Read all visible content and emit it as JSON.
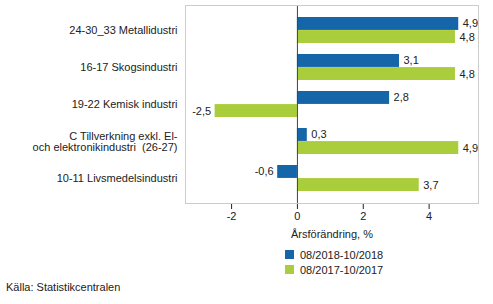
{
  "chart_data": {
    "type": "bar",
    "orientation": "horizontal",
    "categories": [
      "24-30_33 Metallidustri",
      "16-17 Skogsindustri",
      "19-22 Kemisk industri",
      "C Tillverkning exkl. El-\noch elektronikindustri  (26-27)",
      "10-11 Livsmedelsindustri"
    ],
    "series": [
      {
        "name": "08/2018-10/2018",
        "color": "#1565a9",
        "values": [
          4.9,
          3.1,
          2.8,
          0.3,
          -0.6
        ],
        "value_labels": [
          "4,9",
          "3,1",
          "2,8",
          "0,3",
          "-0,6"
        ]
      },
      {
        "name": "08/2017-10/2017",
        "color": "#aacd3b",
        "values": [
          4.8,
          4.8,
          -2.5,
          4.9,
          3.7
        ],
        "value_labels": [
          "4,8",
          "4,8",
          "-2,5",
          "4,9",
          "3,7"
        ]
      }
    ],
    "x_label": "Årsförändring, %",
    "xlim": [
      -3.4,
      5.5
    ],
    "xticks": [
      -2,
      0,
      2,
      4
    ],
    "grid": false,
    "data_labels": true,
    "legend": "bottom",
    "caption": "Källa: Statistikcentralen"
  }
}
